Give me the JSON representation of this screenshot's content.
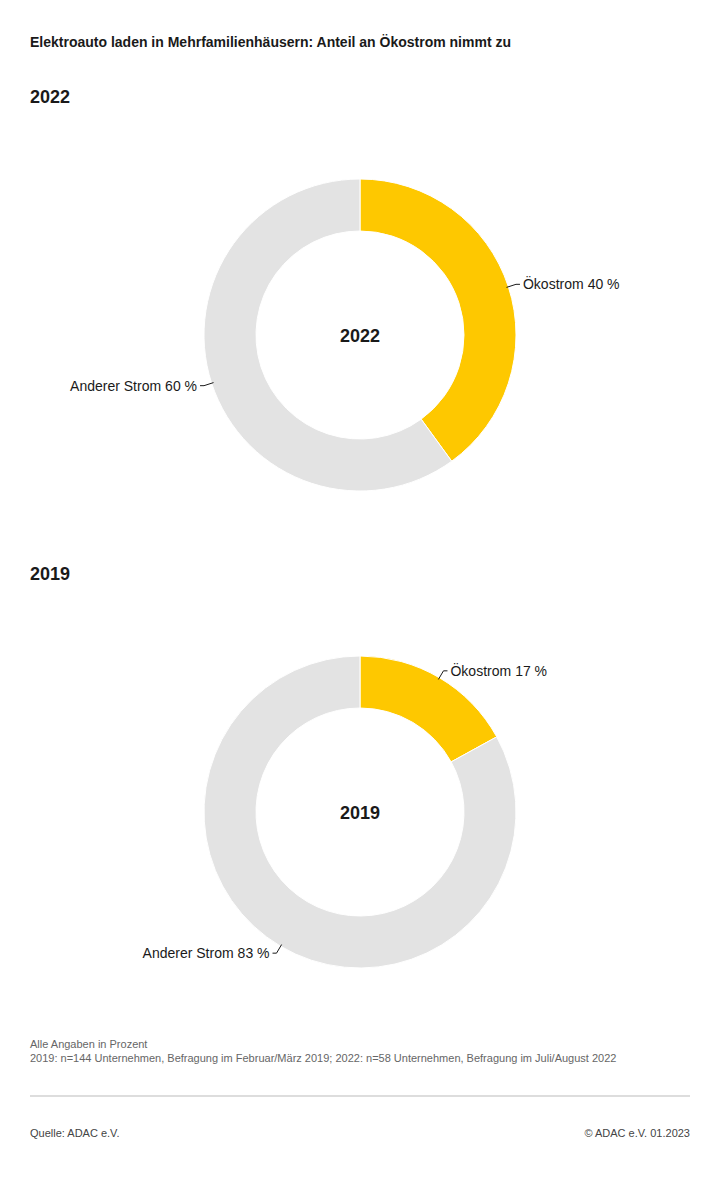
{
  "header": {
    "title": "Elektroauto laden in Mehrfamilienhäusern: Anteil an Ökostrom nimmt zu"
  },
  "chart_data": [
    {
      "type": "donut",
      "title": "2022",
      "categories": [
        "Ökostrom",
        "Anderer Strom"
      ],
      "values": [
        40,
        60
      ],
      "value_labels": [
        "40 %",
        "60 %"
      ],
      "colors": [
        "#fec800",
        "#e3e3e3"
      ],
      "data_labels": true
    },
    {
      "type": "donut",
      "title": "2019",
      "categories": [
        "Ökostrom",
        "Anderer Strom"
      ],
      "values": [
        17,
        83
      ],
      "value_labels": [
        "17 %",
        "83 %"
      ],
      "colors": [
        "#fec800",
        "#e3e3e3"
      ],
      "data_labels": true
    }
  ],
  "footer": {
    "notes": [
      "Alle Angaben in Prozent",
      "2019: n=144 Unternehmen, Befragung im Februar/März 2019; 2022: n=58 Unternehmen, Befragung im Juli/August 2022"
    ],
    "source": "Quelle: ADAC e.V.",
    "copyright": "© ADAC e.V. 01.2023"
  }
}
